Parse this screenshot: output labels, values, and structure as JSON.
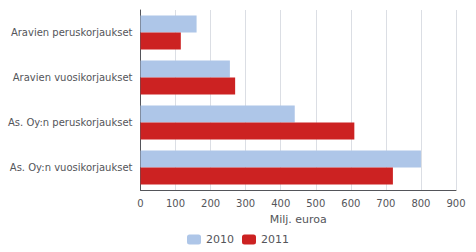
{
  "chart_data": {
    "type": "bar",
    "orientation": "horizontal",
    "categories": [
      "As. Oy:n vuosikorjaukset",
      "As. Oy:n peruskorjaukset",
      "Aravien vuosikorjaukset",
      "Aravien peruskorjaukset"
    ],
    "series": [
      {
        "name": "2010",
        "color": "#aec6e8",
        "values": [
          800,
          440,
          255,
          160
        ]
      },
      {
        "name": "2011",
        "color": "#cc2222",
        "values": [
          720,
          610,
          270,
          115
        ]
      }
    ],
    "xlabel": "Milj. euroa",
    "xlim": [
      0,
      900
    ],
    "xticks": [
      0,
      100,
      200,
      300,
      400,
      500,
      600,
      700,
      800,
      900
    ],
    "grid": true,
    "legend": "bottom"
  }
}
